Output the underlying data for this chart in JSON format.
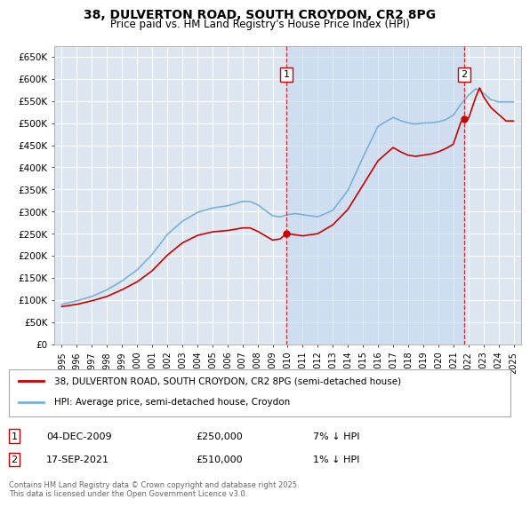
{
  "title": "38, DULVERTON ROAD, SOUTH CROYDON, CR2 8PG",
  "subtitle": "Price paid vs. HM Land Registry's House Price Index (HPI)",
  "ylim": [
    0,
    675000
  ],
  "yticks": [
    0,
    50000,
    100000,
    150000,
    200000,
    250000,
    300000,
    350000,
    400000,
    450000,
    500000,
    550000,
    600000,
    650000
  ],
  "ytick_labels": [
    "£0",
    "£50K",
    "£100K",
    "£150K",
    "£200K",
    "£250K",
    "£300K",
    "£350K",
    "£400K",
    "£450K",
    "£500K",
    "£550K",
    "£600K",
    "£650K"
  ],
  "background_color": "#ffffff",
  "plot_bg_color": "#dce6f1",
  "grid_color": "#ffffff",
  "hpi_color": "#7ab0d8",
  "price_color": "#cc0000",
  "vline_color": "#cc0000",
  "transaction1": {
    "date_num": 2009.92,
    "price": 250000,
    "label": "1",
    "date_str": "04-DEC-2009",
    "pct": "7% ↓ HPI"
  },
  "transaction2": {
    "date_num": 2021.72,
    "price": 510000,
    "label": "2",
    "date_str": "17-SEP-2021",
    "pct": "1% ↓ HPI"
  },
  "legend_line1": "38, DULVERTON ROAD, SOUTH CROYDON, CR2 8PG (semi-detached house)",
  "legend_line2": "HPI: Average price, semi-detached house, Croydon",
  "footnote": "Contains HM Land Registry data © Crown copyright and database right 2025.\nThis data is licensed under the Open Government Licence v3.0.",
  "xlim_start": 1994.5,
  "xlim_end": 2025.5
}
